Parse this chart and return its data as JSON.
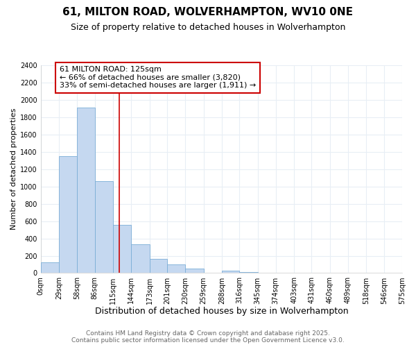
{
  "title": "61, MILTON ROAD, WOLVERHAMPTON, WV10 0NE",
  "subtitle": "Size of property relative to detached houses in Wolverhampton",
  "xlabel": "Distribution of detached houses by size in Wolverhampton",
  "ylabel": "Number of detached properties",
  "bar_values": [
    125,
    1350,
    1910,
    1060,
    560,
    330,
    165,
    100,
    55,
    0,
    25,
    10,
    0,
    0,
    0,
    0,
    0,
    0,
    0,
    0
  ],
  "bin_edges": [
    0,
    29,
    58,
    86,
    115,
    144,
    173,
    201,
    230,
    259,
    288,
    316,
    345,
    374,
    403,
    431,
    460,
    489,
    518,
    546,
    575
  ],
  "bar_color": "#c5d8f0",
  "bar_edge_color": "#7aadd6",
  "vline_x": 125,
  "vline_color": "#cc0000",
  "ylim": [
    0,
    2400
  ],
  "yticks": [
    0,
    200,
    400,
    600,
    800,
    1000,
    1200,
    1400,
    1600,
    1800,
    2000,
    2200,
    2400
  ],
  "annotation_text": "61 MILTON ROAD: 125sqm\n← 66% of detached houses are smaller (3,820)\n33% of semi-detached houses are larger (1,911) →",
  "annotation_box_color": "#ffffff",
  "annotation_box_edge": "#cc0000",
  "footer_line1": "Contains HM Land Registry data © Crown copyright and database right 2025.",
  "footer_line2": "Contains public sector information licensed under the Open Government Licence v3.0.",
  "background_color": "#ffffff",
  "grid_color": "#e8eef5",
  "title_fontsize": 11,
  "subtitle_fontsize": 9,
  "xlabel_fontsize": 9,
  "ylabel_fontsize": 8,
  "tick_fontsize": 7,
  "footer_fontsize": 6.5,
  "annotation_fontsize": 8
}
